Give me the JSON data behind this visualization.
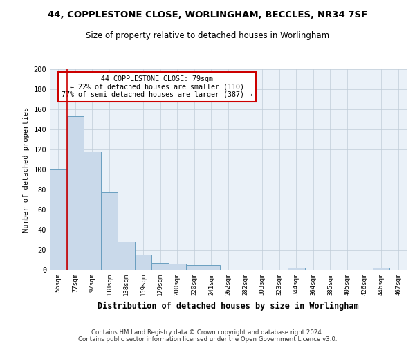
{
  "title": "44, COPPLESTONE CLOSE, WORLINGHAM, BECCLES, NR34 7SF",
  "subtitle": "Size of property relative to detached houses in Worlingham",
  "xlabel": "Distribution of detached houses by size in Worlingham",
  "ylabel": "Number of detached properties",
  "bar_color": "#c9d9ea",
  "bar_edge_color": "#6a9fc0",
  "background_color": "#eaf1f8",
  "grid_color": "#c0ccd8",
  "categories": [
    "56sqm",
    "77sqm",
    "97sqm",
    "118sqm",
    "138sqm",
    "159sqm",
    "179sqm",
    "200sqm",
    "220sqm",
    "241sqm",
    "262sqm",
    "282sqm",
    "303sqm",
    "323sqm",
    "344sqm",
    "364sqm",
    "385sqm",
    "405sqm",
    "426sqm",
    "446sqm",
    "467sqm"
  ],
  "values": [
    101,
    153,
    118,
    77,
    28,
    15,
    7,
    6,
    5,
    5,
    0,
    0,
    0,
    0,
    2,
    0,
    0,
    0,
    0,
    2,
    0
  ],
  "ylim": [
    0,
    200
  ],
  "yticks": [
    0,
    20,
    40,
    60,
    80,
    100,
    120,
    140,
    160,
    180,
    200
  ],
  "property_line_x": 0.5,
  "annotation_text": "44 COPPLESTONE CLOSE: 79sqm\n← 22% of detached houses are smaller (110)\n77% of semi-detached houses are larger (387) →",
  "annotation_box_color": "#ffffff",
  "annotation_box_edge_color": "#cc0000",
  "red_line_color": "#cc0000",
  "footnote": "Contains HM Land Registry data © Crown copyright and database right 2024.\nContains public sector information licensed under the Open Government Licence v3.0."
}
